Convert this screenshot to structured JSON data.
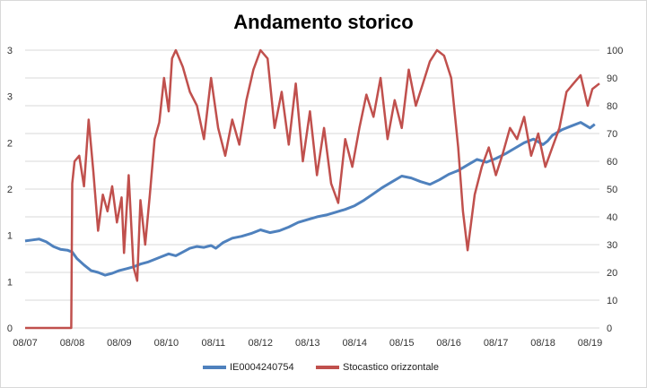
{
  "chart_data": {
    "type": "line",
    "title": "Andamento storico",
    "x_ticks": [
      "08/07",
      "08/08",
      "08/09",
      "08/10",
      "08/11",
      "08/12",
      "08/13",
      "08/14",
      "08/15",
      "08/16",
      "08/17",
      "08/18",
      "08/19"
    ],
    "y_left_ticks": [
      "0",
      "1",
      "1",
      "2",
      "2",
      "3",
      "3"
    ],
    "y_left_ticks_scale": [
      0,
      0.5,
      1.0,
      1.5,
      2.0,
      2.5,
      3.0
    ],
    "y_right_ticks": [
      0,
      10,
      20,
      30,
      40,
      50,
      60,
      70,
      80,
      90,
      100
    ],
    "ylim_left": [
      0,
      3.0
    ],
    "ylim_right": [
      0,
      100
    ],
    "xlim": [
      0,
      12.2
    ],
    "grid": "horizontal",
    "legend_position": "bottom",
    "series": [
      {
        "name": "IE0004240754",
        "axis": "left",
        "color": "#4f81bd",
        "points": [
          [
            0.0,
            0.94
          ],
          [
            0.15,
            0.95
          ],
          [
            0.3,
            0.96
          ],
          [
            0.45,
            0.93
          ],
          [
            0.6,
            0.88
          ],
          [
            0.75,
            0.85
          ],
          [
            0.9,
            0.84
          ],
          [
            1.0,
            0.82
          ],
          [
            1.1,
            0.75
          ],
          [
            1.25,
            0.68
          ],
          [
            1.4,
            0.62
          ],
          [
            1.55,
            0.6
          ],
          [
            1.7,
            0.57
          ],
          [
            1.85,
            0.59
          ],
          [
            2.0,
            0.62
          ],
          [
            2.15,
            0.64
          ],
          [
            2.3,
            0.66
          ],
          [
            2.45,
            0.69
          ],
          [
            2.6,
            0.71
          ],
          [
            2.75,
            0.74
          ],
          [
            2.9,
            0.77
          ],
          [
            3.05,
            0.8
          ],
          [
            3.2,
            0.78
          ],
          [
            3.35,
            0.82
          ],
          [
            3.5,
            0.86
          ],
          [
            3.65,
            0.88
          ],
          [
            3.8,
            0.87
          ],
          [
            3.95,
            0.89
          ],
          [
            4.05,
            0.86
          ],
          [
            4.2,
            0.92
          ],
          [
            4.4,
            0.97
          ],
          [
            4.6,
            0.99
          ],
          [
            4.8,
            1.02
          ],
          [
            5.0,
            1.06
          ],
          [
            5.2,
            1.03
          ],
          [
            5.4,
            1.05
          ],
          [
            5.6,
            1.09
          ],
          [
            5.8,
            1.14
          ],
          [
            6.0,
            1.17
          ],
          [
            6.2,
            1.2
          ],
          [
            6.4,
            1.22
          ],
          [
            6.6,
            1.25
          ],
          [
            6.8,
            1.28
          ],
          [
            7.0,
            1.32
          ],
          [
            7.2,
            1.38
          ],
          [
            7.4,
            1.45
          ],
          [
            7.6,
            1.52
          ],
          [
            7.8,
            1.58
          ],
          [
            8.0,
            1.64
          ],
          [
            8.2,
            1.62
          ],
          [
            8.4,
            1.58
          ],
          [
            8.6,
            1.55
          ],
          [
            8.8,
            1.6
          ],
          [
            9.0,
            1.66
          ],
          [
            9.2,
            1.7
          ],
          [
            9.4,
            1.76
          ],
          [
            9.6,
            1.82
          ],
          [
            9.8,
            1.79
          ],
          [
            10.0,
            1.83
          ],
          [
            10.2,
            1.88
          ],
          [
            10.4,
            1.94
          ],
          [
            10.6,
            2.0
          ],
          [
            10.8,
            2.04
          ],
          [
            11.0,
            1.98
          ],
          [
            11.1,
            2.02
          ],
          [
            11.2,
            2.08
          ],
          [
            11.4,
            2.14
          ],
          [
            11.6,
            2.18
          ],
          [
            11.8,
            2.22
          ],
          [
            12.0,
            2.16
          ],
          [
            12.1,
            2.2
          ]
        ]
      },
      {
        "name": "Stocastico orizzontale",
        "axis": "right",
        "color": "#c0504d",
        "points": [
          [
            0.0,
            0
          ],
          [
            0.98,
            0
          ],
          [
            1.0,
            52
          ],
          [
            1.05,
            60
          ],
          [
            1.15,
            62
          ],
          [
            1.25,
            51
          ],
          [
            1.35,
            75
          ],
          [
            1.45,
            56
          ],
          [
            1.55,
            35
          ],
          [
            1.65,
            48
          ],
          [
            1.75,
            42
          ],
          [
            1.85,
            51
          ],
          [
            1.95,
            38
          ],
          [
            2.05,
            47
          ],
          [
            2.1,
            27
          ],
          [
            2.2,
            55
          ],
          [
            2.3,
            22
          ],
          [
            2.38,
            17
          ],
          [
            2.45,
            46
          ],
          [
            2.55,
            30
          ],
          [
            2.65,
            48
          ],
          [
            2.75,
            68
          ],
          [
            2.85,
            74
          ],
          [
            2.95,
            90
          ],
          [
            3.05,
            78
          ],
          [
            3.12,
            97
          ],
          [
            3.2,
            100
          ],
          [
            3.35,
            94
          ],
          [
            3.5,
            85
          ],
          [
            3.65,
            80
          ],
          [
            3.8,
            68
          ],
          [
            3.95,
            90
          ],
          [
            4.1,
            72
          ],
          [
            4.25,
            62
          ],
          [
            4.4,
            75
          ],
          [
            4.55,
            66
          ],
          [
            4.7,
            82
          ],
          [
            4.85,
            93
          ],
          [
            5.0,
            100
          ],
          [
            5.15,
            97
          ],
          [
            5.3,
            72
          ],
          [
            5.45,
            85
          ],
          [
            5.6,
            66
          ],
          [
            5.75,
            88
          ],
          [
            5.9,
            60
          ],
          [
            6.05,
            78
          ],
          [
            6.2,
            55
          ],
          [
            6.35,
            72
          ],
          [
            6.5,
            52
          ],
          [
            6.65,
            45
          ],
          [
            6.8,
            68
          ],
          [
            6.95,
            58
          ],
          [
            7.1,
            72
          ],
          [
            7.25,
            84
          ],
          [
            7.4,
            76
          ],
          [
            7.55,
            90
          ],
          [
            7.7,
            68
          ],
          [
            7.85,
            82
          ],
          [
            8.0,
            72
          ],
          [
            8.15,
            93
          ],
          [
            8.3,
            80
          ],
          [
            8.45,
            88
          ],
          [
            8.6,
            96
          ],
          [
            8.75,
            100
          ],
          [
            8.9,
            98
          ],
          [
            9.05,
            90
          ],
          [
            9.2,
            65
          ],
          [
            9.3,
            42
          ],
          [
            9.4,
            28
          ],
          [
            9.55,
            48
          ],
          [
            9.7,
            58
          ],
          [
            9.85,
            65
          ],
          [
            10.0,
            55
          ],
          [
            10.15,
            63
          ],
          [
            10.3,
            72
          ],
          [
            10.45,
            68
          ],
          [
            10.6,
            76
          ],
          [
            10.75,
            62
          ],
          [
            10.9,
            70
          ],
          [
            11.05,
            58
          ],
          [
            11.2,
            65
          ],
          [
            11.35,
            72
          ],
          [
            11.5,
            85
          ],
          [
            11.65,
            88
          ],
          [
            11.8,
            91
          ],
          [
            11.95,
            80
          ],
          [
            12.05,
            86
          ],
          [
            12.2,
            88
          ]
        ]
      }
    ]
  }
}
